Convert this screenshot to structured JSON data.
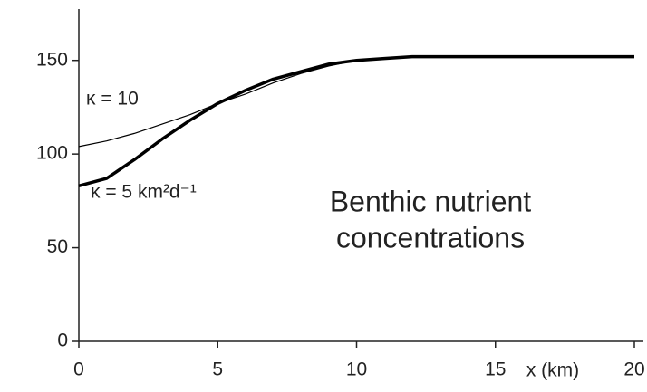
{
  "chart_data": {
    "type": "line",
    "x": [
      0,
      1,
      2,
      3,
      4,
      5,
      6,
      7,
      8,
      9,
      10,
      11,
      12,
      13,
      14,
      15,
      16,
      17,
      18,
      19,
      20
    ],
    "series": [
      {
        "name": "κ = 10",
        "color": "#000000",
        "width": 1.2,
        "values": [
          104,
          107,
          111,
          116,
          121,
          127,
          132,
          138,
          143,
          147,
          150,
          151,
          152,
          152,
          152,
          152,
          152,
          152,
          152,
          152,
          152
        ]
      },
      {
        "name": "κ = 5 km²d⁻¹",
        "color": "#000000",
        "width": 3.5,
        "values": [
          83,
          87,
          97,
          108,
          118,
          127,
          134,
          140,
          144,
          148,
          150,
          151,
          152,
          152,
          152,
          152,
          152,
          152,
          152,
          152,
          152
        ]
      }
    ],
    "annotations": [
      "Benthic nutrient",
      "concentrations"
    ],
    "xlabel": "x (km)",
    "xlim": [
      0,
      20
    ],
    "xticks": [
      0,
      5,
      10,
      15,
      20
    ],
    "ylim": [
      0,
      175
    ],
    "yticks": [
      0,
      50,
      100,
      150
    ],
    "grid": false
  }
}
